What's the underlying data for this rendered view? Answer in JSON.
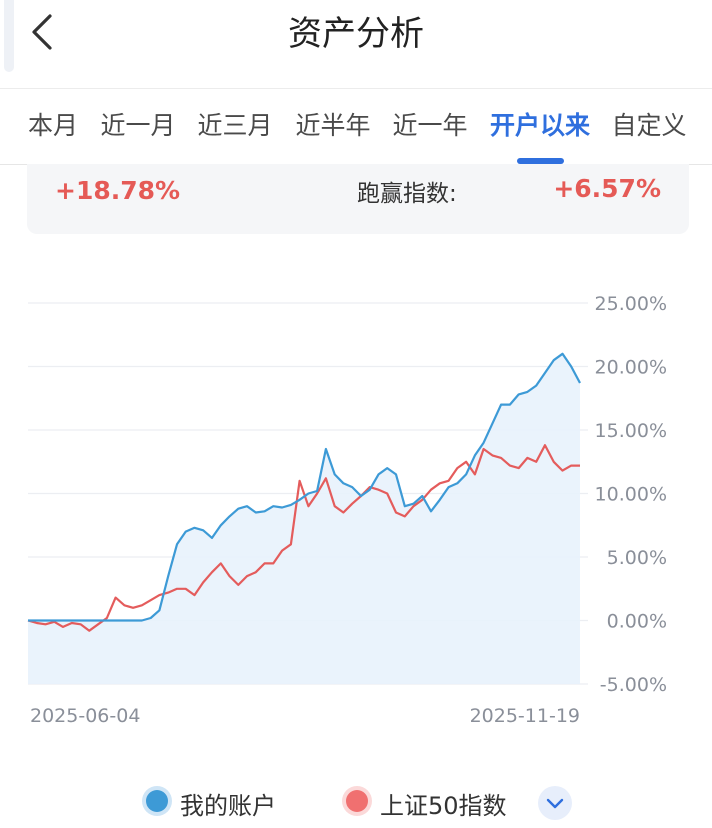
{
  "header": {
    "title": "资产分析",
    "back_icon": "chevron-left-icon"
  },
  "tabs": [
    {
      "label": "本月",
      "active": false
    },
    {
      "label": "近一月",
      "active": false
    },
    {
      "label": "近三月",
      "active": false
    },
    {
      "label": "近半年",
      "active": false
    },
    {
      "label": "近一年",
      "active": false
    },
    {
      "label": "开户以来",
      "active": true
    },
    {
      "label": "自定义",
      "active": false
    }
  ],
  "summary": {
    "return_value": "+18.78%",
    "beat_index_label": "跑赢指数:",
    "beat_index_value": "+6.57%"
  },
  "colors": {
    "accent": "#2f6fde",
    "account_line": "#3d9ad6",
    "index_line": "#e45c5c",
    "positive": "#e55a56"
  },
  "chart_data": {
    "type": "line",
    "y_tick_labels": [
      "25.00%",
      "20.00%",
      "15.00%",
      "10.00%",
      "5.00%",
      "0.00%",
      "-5.00%"
    ],
    "ylim": [
      -5,
      25
    ],
    "x_start_label": "2025-06-04",
    "x_end_label": "2025-11-19",
    "grid": true,
    "series": [
      {
        "name": "我的账户",
        "values": [
          0,
          0,
          0,
          0,
          0,
          0,
          0,
          0,
          0,
          0,
          0,
          0,
          0,
          0,
          0.2,
          0.8,
          3.5,
          6,
          7,
          7.3,
          7.1,
          6.5,
          7.5,
          8.2,
          8.8,
          9,
          8.5,
          8.6,
          9,
          8.9,
          9.1,
          9.5,
          10,
          10.2,
          13.5,
          11.5,
          10.8,
          10.5,
          9.8,
          10.3,
          11.5,
          12,
          11.5,
          9,
          9.2,
          9.8,
          8.6,
          9.5,
          10.5,
          10.8,
          11.5,
          13,
          14,
          15.5,
          17,
          17,
          17.8,
          18,
          18.5,
          19.5,
          20.5,
          21,
          20,
          18.7
        ]
      },
      {
        "name": "上证50指数",
        "values": [
          0,
          -0.2,
          -0.3,
          -0.1,
          -0.5,
          -0.2,
          -0.3,
          -0.8,
          -0.3,
          0.2,
          1.8,
          1.2,
          1,
          1.2,
          1.6,
          2,
          2.2,
          2.5,
          2.5,
          2,
          3,
          3.8,
          4.5,
          3.5,
          2.8,
          3.5,
          3.8,
          4.5,
          4.5,
          5.5,
          6,
          11,
          9,
          10,
          11.2,
          9,
          8.5,
          9.2,
          9.8,
          10.5,
          10.3,
          10,
          8.5,
          8.2,
          9,
          9.5,
          10.3,
          10.8,
          11,
          12,
          12.5,
          11.5,
          13.5,
          13,
          12.8,
          12.2,
          12,
          12.8,
          12.5,
          13.8,
          12.5,
          11.8,
          12.2,
          12.2
        ]
      }
    ]
  },
  "legend": {
    "items": [
      {
        "label": "我的账户",
        "color": "#3d9ad6"
      },
      {
        "label": "上证50指数",
        "color": "#e45c5c"
      }
    ],
    "toggle_icon": "chevron-down-icon"
  }
}
